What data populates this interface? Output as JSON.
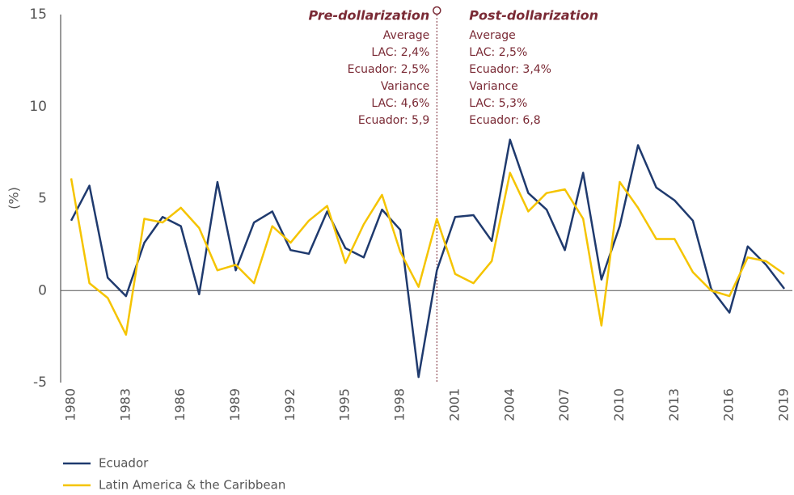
{
  "chart_data": {
    "type": "line",
    "y_label": "(%)",
    "x": [
      1980,
      1981,
      1982,
      1983,
      1984,
      1985,
      1986,
      1987,
      1988,
      1989,
      1990,
      1991,
      1992,
      1993,
      1994,
      1995,
      1996,
      1997,
      1998,
      1999,
      2000,
      2001,
      2002,
      2003,
      2004,
      2005,
      2006,
      2007,
      2008,
      2009,
      2010,
      2011,
      2012,
      2013,
      2014,
      2015,
      2016,
      2017,
      2018,
      2019
    ],
    "xlim": [
      1980,
      2019
    ],
    "xticks": [
      1980,
      1983,
      1986,
      1989,
      1992,
      1995,
      1998,
      2001,
      2004,
      2007,
      2010,
      2013,
      2016,
      2019
    ],
    "ylim": [
      -5,
      15
    ],
    "yticks": [
      -5,
      0,
      5,
      10,
      15
    ],
    "series": [
      {
        "name": "Ecuador",
        "color": "#1f3a6e",
        "values": [
          3.8,
          5.7,
          0.7,
          -0.3,
          2.6,
          4.0,
          3.5,
          -0.2,
          5.9,
          1.1,
          3.7,
          4.3,
          2.2,
          2.0,
          4.3,
          2.3,
          1.8,
          4.4,
          3.3,
          -4.7,
          1.1,
          4.0,
          4.1,
          2.7,
          8.2,
          5.3,
          4.4,
          2.2,
          6.4,
          0.6,
          3.5,
          7.9,
          5.6,
          4.9,
          3.8,
          0.1,
          -1.2,
          2.4,
          1.4,
          0.1
        ]
      },
      {
        "name": "Latin America & the Caribbean",
        "color": "#f5c400",
        "values": [
          6.1,
          0.4,
          -0.4,
          -2.4,
          3.9,
          3.7,
          4.5,
          3.4,
          1.1,
          1.4,
          0.4,
          3.5,
          2.6,
          3.8,
          4.6,
          1.5,
          3.6,
          5.2,
          2.1,
          0.2,
          3.9,
          0.9,
          0.4,
          1.6,
          6.4,
          4.3,
          5.3,
          5.5,
          3.9,
          -1.9,
          5.9,
          4.5,
          2.8,
          2.8,
          1.0,
          0.0,
          -0.3,
          1.8,
          1.6,
          0.9
        ]
      }
    ],
    "divider": {
      "x": 2000,
      "left": {
        "title": "Pre-dollarization",
        "average_label": "Average",
        "average": [
          "LAC: 2,4%",
          "Ecuador: 2,5%"
        ],
        "variance_label": "Variance",
        "variance": [
          "LAC: 4,6%",
          "Ecuador: 5,9"
        ]
      },
      "right": {
        "title": "Post-dollarization",
        "average_label": "Average",
        "average": [
          "LAC: 2,5%",
          "Ecuador: 3,4%"
        ],
        "variance_label": "Variance",
        "variance": [
          "LAC: 5,3%",
          "Ecuador: 6,8"
        ]
      }
    }
  }
}
